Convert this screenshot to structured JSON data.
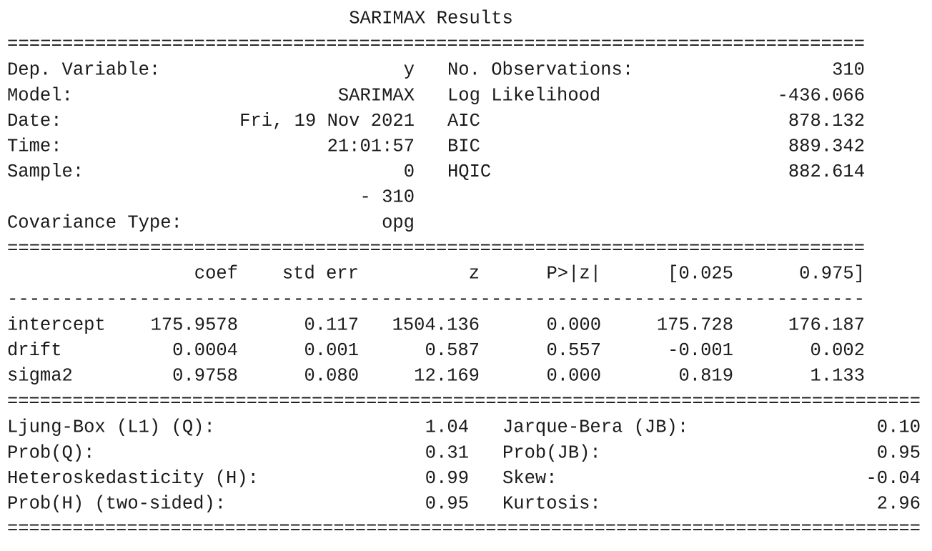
{
  "title": "SARIMAX Results",
  "separators": [
    "==============================================================================",
    "==============================================================================",
    "------------------------------------------------------------------------------",
    "====================================================================================",
    "===================================================================================="
  ],
  "info": {
    "left": [
      {
        "label": "Dep. Variable:",
        "value": "y"
      },
      {
        "label": "Model:",
        "value": "SARIMAX"
      },
      {
        "label": "Date:",
        "value": "Fri, 19 Nov 2021"
      },
      {
        "label": "Time:",
        "value": "21:01:57"
      },
      {
        "label": "Sample:",
        "value": "0"
      },
      {
        "value": "- 310"
      },
      {
        "label": "Covariance Type:",
        "value": "opg"
      }
    ],
    "right": [
      {
        "label": "No. Observations:",
        "value": "310"
      },
      {
        "label": "Log Likelihood",
        "value": "-436.066"
      },
      {
        "label": "AIC",
        "value": "878.132"
      },
      {
        "label": "BIC",
        "value": "889.342"
      },
      {
        "label": "HQIC",
        "value": "882.614"
      }
    ]
  },
  "coef_table": {
    "columns": [
      "coef",
      "std err",
      "z",
      "P>|z|",
      "[0.025",
      "0.975]"
    ],
    "rows": [
      {
        "name": "intercept",
        "values": [
          "175.9578",
          "0.117",
          "1504.136",
          "0.000",
          "175.728",
          "176.187"
        ]
      },
      {
        "name": "drift",
        "values": [
          "0.0004",
          "0.001",
          "0.587",
          "0.557",
          "-0.001",
          "0.002"
        ]
      },
      {
        "name": "sigma2",
        "values": [
          "0.9758",
          "0.080",
          "12.169",
          "0.000",
          "0.819",
          "1.133"
        ]
      }
    ]
  },
  "diagnostics": {
    "left": [
      {
        "label": "Ljung-Box (L1) (Q):",
        "value": "1.04"
      },
      {
        "label": "Prob(Q):",
        "value": "0.31"
      },
      {
        "label": "Heteroskedasticity (H):",
        "value": "0.99"
      },
      {
        "label": "Prob(H) (two-sided):",
        "value": "0.95"
      }
    ],
    "right": [
      {
        "label": "Jarque-Bera (JB):",
        "value": "0.10"
      },
      {
        "label": "Prob(JB):",
        "value": "0.95"
      },
      {
        "label": "Skew:",
        "value": "-0.04"
      },
      {
        "label": "Kurtosis:",
        "value": "2.96"
      }
    ]
  }
}
